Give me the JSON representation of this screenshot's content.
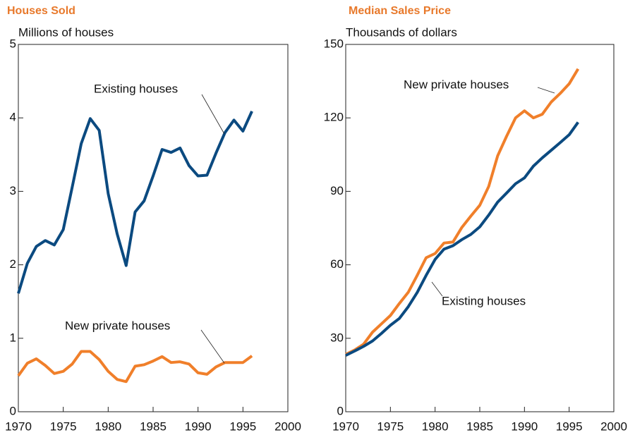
{
  "chart_data": [
    {
      "type": "line",
      "title": "Houses Sold",
      "subtitle": "Millions of houses",
      "x": [
        1970,
        1971,
        1972,
        1973,
        1974,
        1975,
        1976,
        1977,
        1978,
        1979,
        1980,
        1981,
        1982,
        1983,
        1984,
        1985,
        1986,
        1987,
        1988,
        1989,
        1990,
        1991,
        1992,
        1993,
        1994,
        1995,
        1996
      ],
      "xlim": [
        1970,
        2000
      ],
      "xticks": [
        1970,
        1975,
        1980,
        1985,
        1990,
        1995,
        2000
      ],
      "ylim": [
        0,
        5
      ],
      "yticks": [
        0,
        1,
        2,
        3,
        4,
        5
      ],
      "series": [
        {
          "name": "Existing houses",
          "color": "#0b4a80",
          "values": [
            1.61,
            2.02,
            2.25,
            2.33,
            2.27,
            2.48,
            3.06,
            3.65,
            3.99,
            3.83,
            2.97,
            2.42,
            1.99,
            2.72,
            2.87,
            3.21,
            3.57,
            3.53,
            3.59,
            3.35,
            3.21,
            3.22,
            3.52,
            3.8,
            3.97,
            3.82,
            4.09
          ]
        },
        {
          "name": "New private houses",
          "color": "#f07f2a",
          "values": [
            0.49,
            0.66,
            0.72,
            0.63,
            0.52,
            0.55,
            0.65,
            0.82,
            0.82,
            0.71,
            0.55,
            0.44,
            0.41,
            0.62,
            0.64,
            0.69,
            0.75,
            0.67,
            0.68,
            0.65,
            0.53,
            0.51,
            0.61,
            0.67,
            0.67,
            0.67,
            0.76
          ]
        }
      ]
    },
    {
      "type": "line",
      "title": "Median Sales Price",
      "subtitle": "Thousands of dollars",
      "x": [
        1970,
        1971,
        1972,
        1973,
        1974,
        1975,
        1976,
        1977,
        1978,
        1979,
        1980,
        1981,
        1982,
        1983,
        1984,
        1985,
        1986,
        1987,
        1988,
        1989,
        1990,
        1991,
        1992,
        1993,
        1994,
        1995,
        1996
      ],
      "xlim": [
        1970,
        2000
      ],
      "xticks": [
        1970,
        1975,
        1980,
        1985,
        1990,
        1995,
        2000
      ],
      "ylim": [
        0,
        150
      ],
      "yticks": [
        0,
        30,
        60,
        90,
        120,
        150
      ],
      "series": [
        {
          "name": "New private houses",
          "color": "#f07f2a",
          "values": [
            23.4,
            25.2,
            27.6,
            32.5,
            35.9,
            39.3,
            44.2,
            48.8,
            55.7,
            62.9,
            64.6,
            68.9,
            69.3,
            75.3,
            79.9,
            84.3,
            92.0,
            104.5,
            112.5,
            120.0,
            122.9,
            120.0,
            121.5,
            126.5,
            130.0,
            133.9,
            140.0
          ]
        },
        {
          "name": "Existing houses",
          "color": "#0b4a80",
          "values": [
            23.0,
            24.8,
            26.7,
            28.9,
            32.0,
            35.3,
            38.1,
            42.9,
            48.7,
            55.7,
            62.2,
            66.4,
            67.8,
            70.3,
            72.4,
            75.5,
            80.3,
            85.6,
            89.3,
            93.1,
            95.5,
            100.3,
            103.7,
            106.8,
            109.9,
            113.1,
            118.2
          ]
        }
      ]
    }
  ]
}
